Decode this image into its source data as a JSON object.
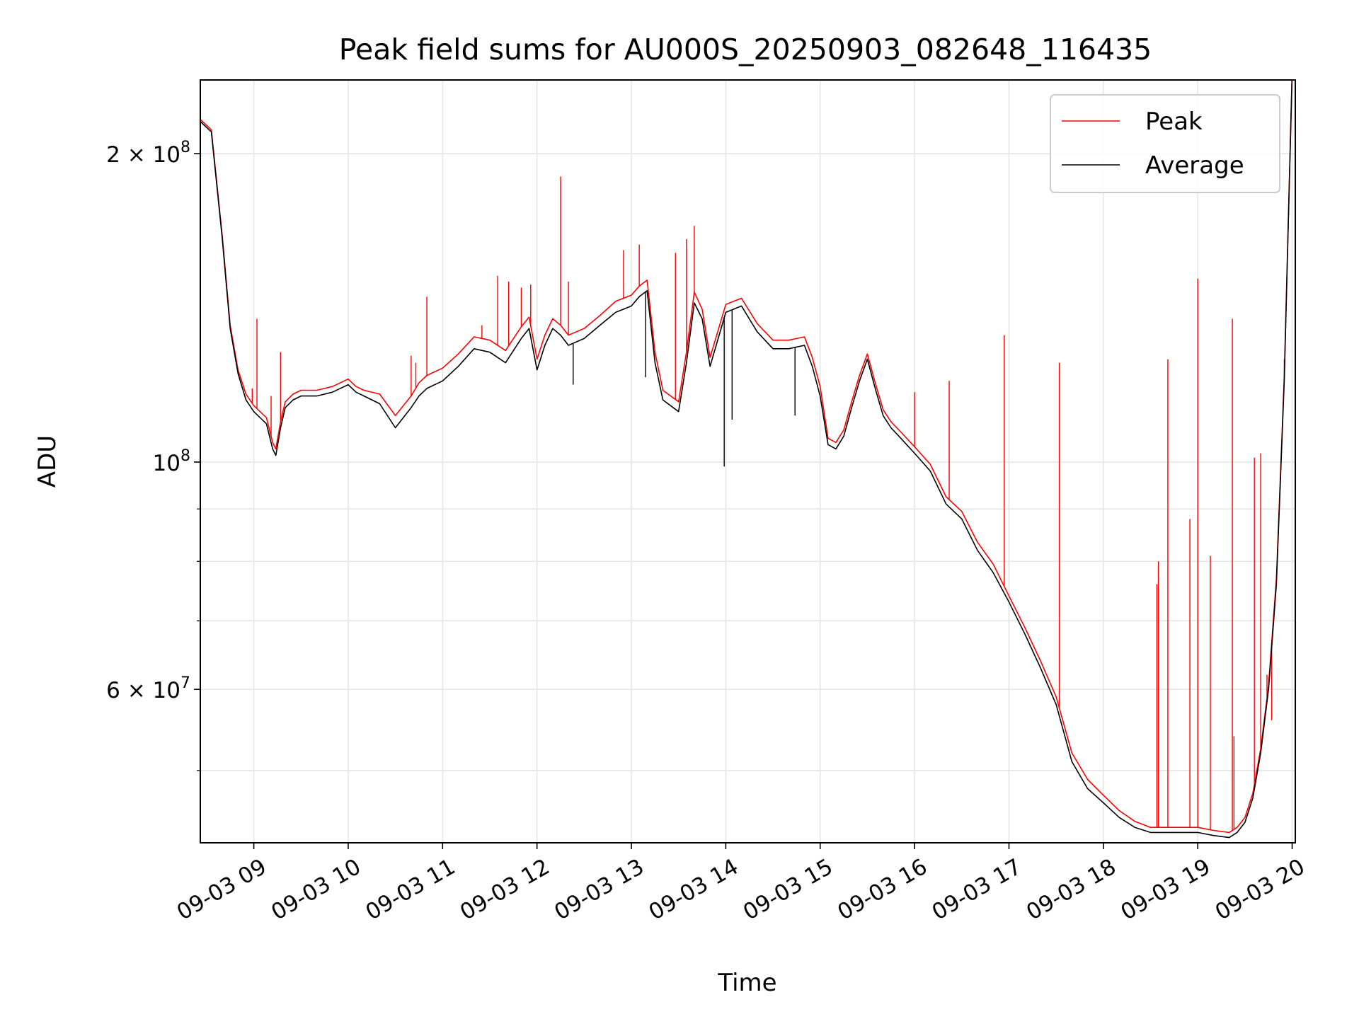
{
  "chart_data": {
    "type": "line",
    "title": "Peak field sums for AU000S_20250903_082648_116435",
    "xlabel": "Time",
    "ylabel": "ADU",
    "yscale": "log",
    "xlim": [
      "2025-09-03 08:26",
      "2025-09-03 20:02"
    ],
    "ylim": [
      42500000,
      236000000
    ],
    "grid": true,
    "legend_position": "upper right",
    "x_ticks": [
      "09-03 09",
      "09-03 10",
      "09-03 11",
      "09-03 12",
      "09-03 13",
      "09-03 14",
      "09-03 15",
      "09-03 16",
      "09-03 17",
      "09-03 18",
      "09-03 19",
      "09-03 20"
    ],
    "y_tick_labels": [
      {
        "value": 200000000,
        "base": "2 × 10",
        "exp": "8"
      },
      {
        "value": 100000000,
        "base": "10",
        "exp": "8"
      },
      {
        "value": 60000000,
        "base": "6 × 10",
        "exp": "7"
      }
    ],
    "y_minor_ticks": [
      50000000,
      70000000,
      80000000,
      90000000
    ],
    "series": [
      {
        "name": "Average",
        "color": "#000000",
        "x": [
          "08:26",
          "08:33",
          "08:40",
          "08:45",
          "08:50",
          "08:55",
          "09:00",
          "09:08",
          "09:12",
          "09:14",
          "09:17",
          "09:20",
          "09:25",
          "09:30",
          "09:40",
          "09:50",
          "10:00",
          "10:05",
          "10:10",
          "10:20",
          "10:30",
          "10:40",
          "10:45",
          "10:50",
          "11:00",
          "11:10",
          "11:20",
          "11:30",
          "11:40",
          "11:50",
          "11:55",
          "12:00",
          "12:05",
          "12:10",
          "12:15",
          "12:20",
          "12:30",
          "12:40",
          "12:50",
          "13:00",
          "13:05",
          "13:10",
          "13:15",
          "13:20",
          "13:30",
          "13:35",
          "13:40",
          "13:45",
          "13:50",
          "14:00",
          "14:05",
          "14:10",
          "14:20",
          "14:30",
          "14:40",
          "14:50",
          "14:55",
          "15:00",
          "15:05",
          "15:10",
          "15:15",
          "15:20",
          "15:25",
          "15:30",
          "15:35",
          "15:40",
          "15:45",
          "15:50",
          "16:00",
          "16:10",
          "16:20",
          "16:30",
          "16:40",
          "16:50",
          "17:00",
          "17:10",
          "17:20",
          "17:30",
          "17:40",
          "17:50",
          "18:00",
          "18:10",
          "18:20",
          "18:30",
          "18:40",
          "18:50",
          "19:00",
          "19:10",
          "19:20",
          "19:25",
          "19:30",
          "19:35",
          "19:40",
          "19:45",
          "19:50",
          "19:55",
          "20:00"
        ],
        "y": [
          215000000,
          210000000,
          165000000,
          135000000,
          122000000,
          115000000,
          112000000,
          109000000,
          103000000,
          101500000,
          108000000,
          113000000,
          115000000,
          116000000,
          116000000,
          117000000,
          119000000,
          117000000,
          116000000,
          114000000,
          108000000,
          113000000,
          116000000,
          118000000,
          120000000,
          124000000,
          129000000,
          128000000,
          125000000,
          132000000,
          135000000,
          123000000,
          130000000,
          135000000,
          133000000,
          130000000,
          132000000,
          136000000,
          140000000,
          142000000,
          145000000,
          147000000,
          125000000,
          115000000,
          112000000,
          125000000,
          143000000,
          138000000,
          124000000,
          140000000,
          141000000,
          142000000,
          134000000,
          129000000,
          129000000,
          130000000,
          124000000,
          116000000,
          104000000,
          103000000,
          106000000,
          113000000,
          120000000,
          126000000,
          118000000,
          111000000,
          108000000,
          106000000,
          102000000,
          98000000,
          91000000,
          88000000,
          82000000,
          78000000,
          73000000,
          68000000,
          63000000,
          58000000,
          51000000,
          48000000,
          46500000,
          45000000,
          44000000,
          43500000,
          43500000,
          43500000,
          43500000,
          43200000,
          43000000,
          43500000,
          44500000,
          47000000,
          52000000,
          60000000,
          76000000,
          120000000,
          240000000
        ]
      },
      {
        "name": "Peak",
        "color": "#ff0000",
        "x": [
          "08:26",
          "08:33",
          "08:40",
          "08:45",
          "08:50",
          "08:55",
          "09:00",
          "09:08",
          "09:12",
          "09:14",
          "09:17",
          "09:20",
          "09:25",
          "09:30",
          "09:40",
          "09:50",
          "10:00",
          "10:05",
          "10:10",
          "10:20",
          "10:30",
          "10:40",
          "10:45",
          "10:50",
          "11:00",
          "11:10",
          "11:20",
          "11:30",
          "11:40",
          "11:50",
          "11:55",
          "12:00",
          "12:05",
          "12:10",
          "12:15",
          "12:20",
          "12:30",
          "12:40",
          "12:50",
          "13:00",
          "13:05",
          "13:10",
          "13:15",
          "13:20",
          "13:30",
          "13:35",
          "13:40",
          "13:45",
          "13:50",
          "14:00",
          "14:05",
          "14:10",
          "14:20",
          "14:30",
          "14:40",
          "14:50",
          "14:55",
          "15:00",
          "15:05",
          "15:10",
          "15:15",
          "15:20",
          "15:25",
          "15:30",
          "15:35",
          "15:40",
          "15:45",
          "15:50",
          "16:00",
          "16:10",
          "16:20",
          "16:30",
          "16:40",
          "16:50",
          "17:00",
          "17:10",
          "17:20",
          "17:30",
          "17:40",
          "17:50",
          "18:00",
          "18:10",
          "18:20",
          "18:30",
          "18:40",
          "18:50",
          "19:00",
          "19:10",
          "19:20",
          "19:25",
          "19:30",
          "19:35",
          "19:40",
          "19:45",
          "19:50",
          "19:55",
          "20:00"
        ],
        "y": [
          216000000,
          211000000,
          166000000,
          136000000,
          123000000,
          116500000,
          113500000,
          110500000,
          104500000,
          103000000,
          109500000,
          114500000,
          116500000,
          117500000,
          117500000,
          118500000,
          120500000,
          118500000,
          117500000,
          116500000,
          111000000,
          116000000,
          119500000,
          121500000,
          123500000,
          127500000,
          132500000,
          131500000,
          128500000,
          135500000,
          138500000,
          126000000,
          133000000,
          138000000,
          136000000,
          133000000,
          135000000,
          139000000,
          143500000,
          145500000,
          148500000,
          150500000,
          128000000,
          117500000,
          114500000,
          128000000,
          146500000,
          141000000,
          126500000,
          142500000,
          143500000,
          144500000,
          136500000,
          131500000,
          131500000,
          132500000,
          126500000,
          118500000,
          105500000,
          104500000,
          107500000,
          114500000,
          121500000,
          127500000,
          119500000,
          112500000,
          109500000,
          107500000,
          103500000,
          99500000,
          92500000,
          89500000,
          83500000,
          79500000,
          74000000,
          69000000,
          64000000,
          59000000,
          52000000,
          49000000,
          47300000,
          45700000,
          44600000,
          44000000,
          44000000,
          44000000,
          44000000,
          43700000,
          43500000,
          44000000,
          45000000,
          47500000,
          52500000,
          60500000,
          77000000,
          121000000,
          241000000
        ]
      }
    ],
    "peak_spikes": [
      {
        "x": "09:02",
        "y": 138000000
      },
      {
        "x": "08:59",
        "y": 118000000
      },
      {
        "x": "09:11",
        "y": 116000000
      },
      {
        "x": "09:17",
        "y": 128000000
      },
      {
        "x": "10:40",
        "y": 127000000
      },
      {
        "x": "10:43",
        "y": 125000000
      },
      {
        "x": "10:50",
        "y": 145000000
      },
      {
        "x": "11:25",
        "y": 136000000
      },
      {
        "x": "11:35",
        "y": 152000000
      },
      {
        "x": "11:42",
        "y": 150000000
      },
      {
        "x": "11:50",
        "y": 148000000
      },
      {
        "x": "11:56",
        "y": 149000000
      },
      {
        "x": "12:15",
        "y": 190000000
      },
      {
        "x": "12:20",
        "y": 150000000
      },
      {
        "x": "12:55",
        "y": 161000000
      },
      {
        "x": "13:05",
        "y": 163000000
      },
      {
        "x": "13:28",
        "y": 160000000
      },
      {
        "x": "13:35",
        "y": 165000000
      },
      {
        "x": "13:40",
        "y": 170000000
      },
      {
        "x": "16:00",
        "y": 117000000
      },
      {
        "x": "16:22",
        "y": 120000000
      },
      {
        "x": "16:57",
        "y": 133000000
      },
      {
        "x": "17:32",
        "y": 125000000
      },
      {
        "x": "18:34",
        "y": 76000000
      },
      {
        "x": "18:35",
        "y": 80000000
      },
      {
        "x": "18:41",
        "y": 126000000
      },
      {
        "x": "18:55",
        "y": 88000000
      },
      {
        "x": "19:00",
        "y": 151000000
      },
      {
        "x": "19:08",
        "y": 81000000
      },
      {
        "x": "19:22",
        "y": 138000000
      },
      {
        "x": "19:23",
        "y": 54000000
      },
      {
        "x": "19:36",
        "y": 101000000
      },
      {
        "x": "19:40",
        "y": 102000000
      },
      {
        "x": "19:44",
        "y": 62000000
      },
      {
        "x": "19:47",
        "y": 56000000
      },
      {
        "x": "19:55",
        "y": 126000000
      }
    ],
    "average_dips": [
      {
        "x": "13:59",
        "y": 99000000
      },
      {
        "x": "14:04",
        "y": 110000000
      },
      {
        "x": "14:44",
        "y": 111000000
      },
      {
        "x": "12:23",
        "y": 119000000
      },
      {
        "x": "13:09",
        "y": 121000000
      }
    ]
  }
}
